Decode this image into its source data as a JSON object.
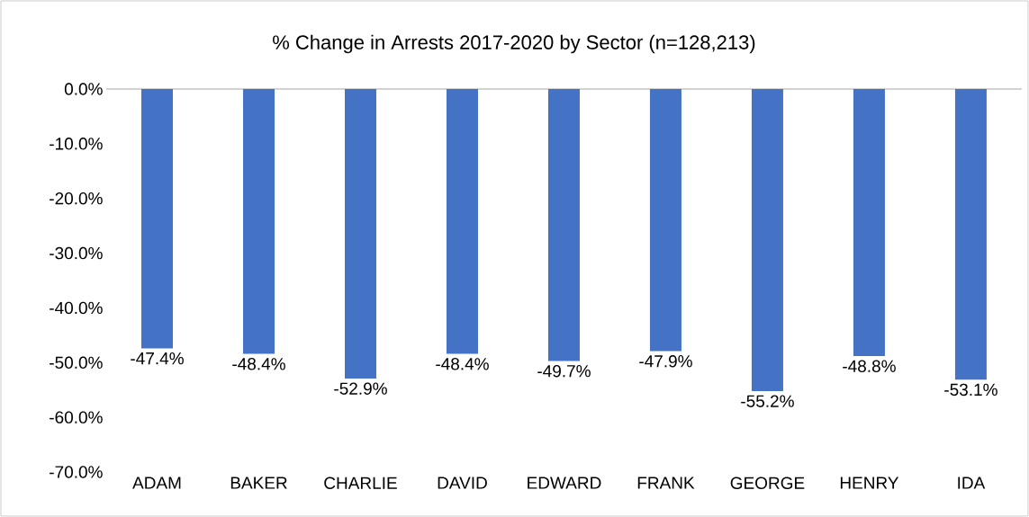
{
  "chart_data": {
    "type": "bar",
    "title": "% Change in Arrests 2017-2020 by Sector (n=128,213)",
    "categories": [
      "ADAM",
      "BAKER",
      "CHARLIE",
      "DAVID",
      "EDWARD",
      "FRANK",
      "GEORGE",
      "HENRY",
      "IDA"
    ],
    "values": [
      -47.4,
      -48.4,
      -52.9,
      -48.4,
      -49.7,
      -47.9,
      -55.2,
      -48.8,
      -53.1
    ],
    "value_labels": [
      "-47.4%",
      "-48.4%",
      "-52.9%",
      "-48.4%",
      "-49.7%",
      "-47.9%",
      "-55.2%",
      "-48.8%",
      "-53.1%"
    ],
    "color": "#4472c4",
    "ylim": [
      -70,
      0
    ],
    "yticks": [
      {
        "value": 0,
        "label": "0.0%"
      },
      {
        "value": -10,
        "label": "-10.0%"
      },
      {
        "value": -20,
        "label": "-20.0%"
      },
      {
        "value": -30,
        "label": "-30.0%"
      },
      {
        "value": -40,
        "label": "-40.0%"
      },
      {
        "value": -50,
        "label": "-50.0%"
      },
      {
        "value": -60,
        "label": "-60.0%"
      },
      {
        "value": -70,
        "label": "-70.0%"
      }
    ],
    "grid": false
  }
}
